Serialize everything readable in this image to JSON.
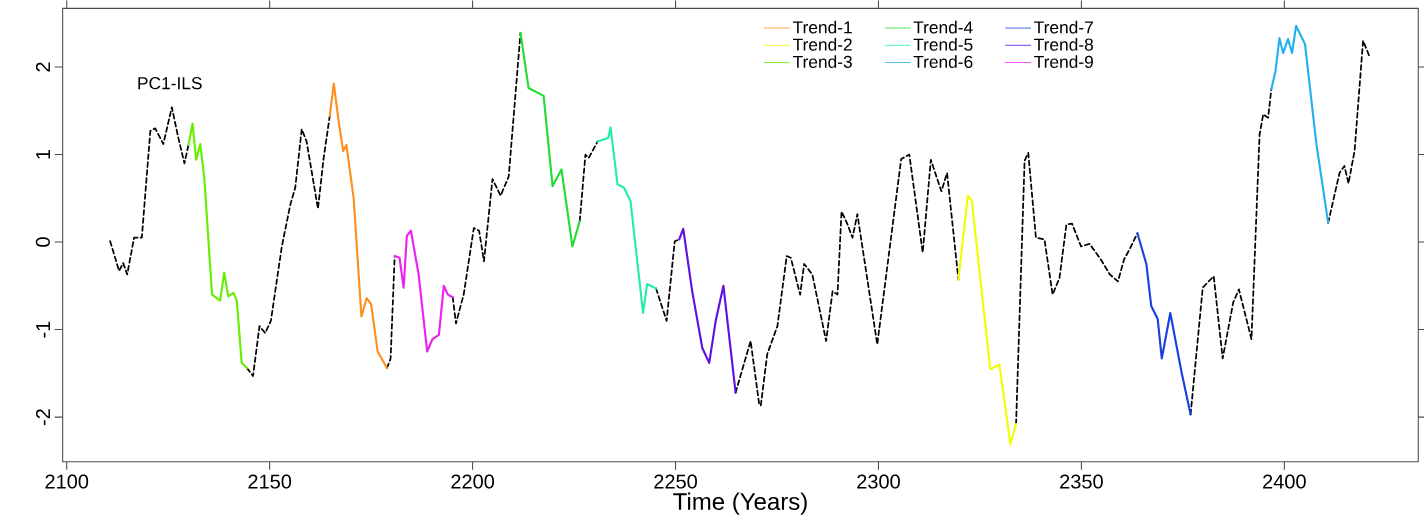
{
  "chart_data": {
    "type": "line",
    "xlabel": "Time (Years)",
    "annotations": [
      "PC1-ILS"
    ],
    "xlim": [
      2099,
      2433
    ],
    "ylim": [
      -2.51,
      2.67
    ],
    "xticks": [
      2100,
      2150,
      2200,
      2250,
      2300,
      2350,
      2400
    ],
    "yticks": [
      -2,
      -1,
      0,
      1,
      2
    ],
    "legend": "top",
    "series": [
      {
        "color": "#000000",
        "line_style": "dashed",
        "x": [
          2110.7,
          2112.9,
          2113.9,
          2114.9,
          2116.6,
          2118.5,
          2120.6,
          2121.8,
          2123.8,
          2125.9,
          2127.5,
          2129.0,
          2130.0,
          2137,
          2144.4,
          2145.9,
          2147.5,
          2148.9,
          2150.3,
          2153.0,
          2155.1,
          2156.3,
          2157.9,
          2159.1,
          2161.9,
          2163.3,
          2164.8,
          2171,
          2178.9,
          2179.8,
          2180.8,
          2188,
          2195.1,
          2195.9,
          2197.8,
          2200.3,
          2201.6,
          2202.8,
          2204.9,
          2206.9,
          2208.9,
          2211.8,
          2219,
          2226.4,
          2227.8,
          2228.6,
          2230.8,
          2238,
          2245.2,
          2247.8,
          2249.8,
          2250.9,
          2258,
          2264.8,
          2268.5,
          2270.6,
          2271.0,
          2272.6,
          2275.1,
          2277.4,
          2278.4,
          2280.7,
          2281.7,
          2283.7,
          2287.1,
          2288.7,
          2289.9,
          2290.9,
          2292.4,
          2293.6,
          2294.8,
          2299.7,
          2302.9,
          2305.6,
          2307.6,
          2310.9,
          2312.9,
          2315.5,
          2316.9,
          2319.7,
          2327,
          2333.9,
          2336.0,
          2336.9,
          2338.8,
          2340.9,
          2342.9,
          2344.6,
          2346.3,
          2347.7,
          2349.9,
          2352.0,
          2354.8,
          2357.0,
          2359.0,
          2360.5,
          2361.9,
          2363.8,
          2370,
          2376.9,
          2379.9,
          2382.6,
          2384.8,
          2387.4,
          2388.8,
          2391.9,
          2393.9,
          2394.8,
          2396.0,
          2396.8,
          2404,
          2410.8,
          2413.6,
          2414.8,
          2415.8,
          2417.3,
          2419.4,
          2420.9
        ],
        "values": [
          0.01,
          -0.33,
          -0.24,
          -0.37,
          0.05,
          0.05,
          1.27,
          1.3,
          1.12,
          1.54,
          1.19,
          0.9,
          1.11,
          null,
          -1.44,
          -1.53,
          -0.96,
          -1.04,
          -0.9,
          -0.05,
          0.43,
          0.62,
          1.29,
          1.15,
          0.38,
          0.96,
          1.44,
          null,
          -1.44,
          -1.33,
          -0.16,
          null,
          -0.63,
          -0.93,
          -0.6,
          0.16,
          0.13,
          -0.22,
          0.72,
          0.53,
          0.75,
          2.39,
          null,
          0.24,
          1.0,
          0.96,
          1.15,
          null,
          -0.53,
          -0.9,
          0.01,
          0.03,
          null,
          -1.72,
          -1.13,
          -1.85,
          -1.87,
          -1.28,
          -0.96,
          -0.16,
          -0.18,
          -0.6,
          -0.25,
          -0.37,
          -1.13,
          -0.56,
          -0.6,
          0.35,
          0.2,
          0.05,
          0.32,
          -1.17,
          -0.02,
          0.95,
          1.0,
          -0.12,
          0.94,
          0.58,
          0.79,
          -0.43,
          null,
          -2.08,
          0.93,
          1.02,
          0.05,
          0.03,
          -0.6,
          -0.41,
          0.2,
          0.21,
          -0.05,
          -0.02,
          -0.2,
          -0.37,
          -0.45,
          -0.2,
          -0.08,
          0.1,
          null,
          -1.97,
          -0.52,
          -0.39,
          -1.33,
          -0.69,
          -0.54,
          -1.11,
          1.23,
          1.46,
          1.42,
          1.75,
          null,
          0.22,
          0.79,
          0.87,
          0.67,
          1.04,
          2.3,
          2.13
        ]
      },
      {
        "name": "Trend-1",
        "color": "#ff9020",
        "line_style": "solid",
        "x": [
          2164.8,
          2165.8,
          2167.0,
          2168.1,
          2168.9,
          2170.7,
          2172.6,
          2173.9,
          2175.0,
          2176.6,
          2178.9
        ],
        "values": [
          1.44,
          1.81,
          1.38,
          1.04,
          1.11,
          0.5,
          -0.85,
          -0.64,
          -0.71,
          -1.25,
          -1.44
        ]
      },
      {
        "name": "Trend-2",
        "color": "#eeff00",
        "line_style": "solid",
        "x": [
          2319.7,
          2322.0,
          2323.0,
          2327.5,
          2327.7,
          2329.8,
          2332.5,
          2333.9
        ],
        "values": [
          -0.43,
          0.53,
          0.47,
          -1.44,
          -1.45,
          -1.4,
          -2.31,
          -2.08
        ]
      },
      {
        "name": "Trend-3",
        "color": "#66ee00",
        "line_style": "solid",
        "x": [
          2130.0,
          2131.0,
          2131.9,
          2132.9,
          2133.9,
          2135.8,
          2137.8,
          2138.8,
          2139.8,
          2141.1,
          2141.9,
          2143.1,
          2144.4
        ],
        "values": [
          1.11,
          1.35,
          0.94,
          1.12,
          0.73,
          -0.6,
          -0.67,
          -0.35,
          -0.62,
          -0.58,
          -0.67,
          -1.38,
          -1.44
        ]
      },
      {
        "name": "Trend-4",
        "color": "#22dd33",
        "line_style": "solid",
        "x": [
          2211.8,
          2213.8,
          2217.5,
          2219.7,
          2221.9,
          2224.6,
          2226.4
        ],
        "values": [
          2.39,
          1.76,
          1.67,
          0.64,
          0.83,
          -0.05,
          0.24
        ]
      },
      {
        "name": "Trend-5",
        "color": "#22eeaa",
        "line_style": "solid",
        "x": [
          2230.8,
          2233.4,
          2234.0,
          2235.7,
          2237.3,
          2238.9,
          2242.0,
          2243.0,
          2245.2
        ],
        "values": [
          1.15,
          1.19,
          1.31,
          0.66,
          0.62,
          0.47,
          -0.81,
          -0.48,
          -0.53
        ]
      },
      {
        "name": "Trend-6",
        "color": "#22b0ee",
        "line_style": "solid",
        "x": [
          2396.8,
          2397.8,
          2398.8,
          2399.7,
          2400.9,
          2401.9,
          2402.9,
          2405.1,
          2407.9,
          2410.8
        ],
        "values": [
          1.75,
          1.95,
          2.33,
          2.16,
          2.32,
          2.16,
          2.47,
          2.26,
          1.12,
          0.22
        ]
      },
      {
        "name": "Trend-7",
        "color": "#1a40e0",
        "line_style": "solid",
        "x": [
          2363.8,
          2366.0,
          2367.2,
          2368.8,
          2369.8,
          2371.9,
          2374.6,
          2376.9
        ],
        "values": [
          0.1,
          -0.25,
          -0.73,
          -0.88,
          -1.33,
          -0.81,
          -1.47,
          -1.97
        ]
      },
      {
        "name": "Trend-8",
        "color": "#6010e0",
        "line_style": "solid",
        "x": [
          2250.9,
          2251.9,
          2254.1,
          2256.6,
          2258.3,
          2259.9,
          2261.8,
          2264.8
        ],
        "values": [
          0.03,
          0.15,
          -0.56,
          -1.21,
          -1.38,
          -0.9,
          -0.5,
          -1.72
        ]
      },
      {
        "name": "Trend-9",
        "color": "#ee22ee",
        "line_style": "solid",
        "x": [
          2180.8,
          2182.0,
          2183.0,
          2183.8,
          2184.8,
          2186.7,
          2188.8,
          2190.1,
          2191.7,
          2192.9,
          2193.9,
          2195.1
        ],
        "values": [
          -0.16,
          -0.18,
          -0.52,
          0.07,
          0.13,
          -0.37,
          -1.25,
          -1.11,
          -1.06,
          -0.5,
          -0.6,
          -0.63
        ]
      }
    ]
  }
}
